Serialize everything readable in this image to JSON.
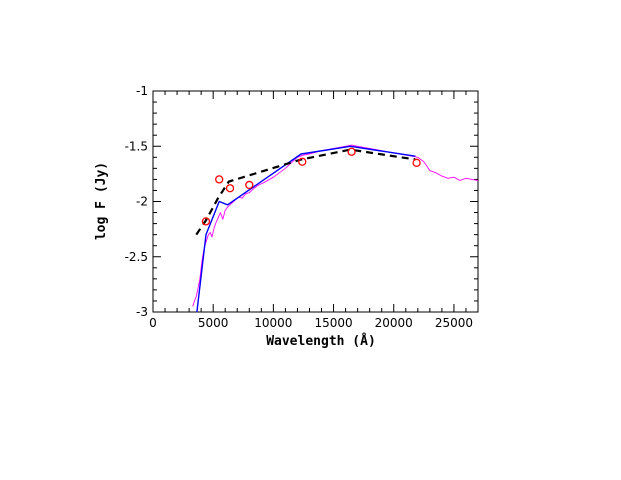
{
  "chart_data": {
    "type": "line",
    "xlabel": "Wavelength (Å)",
    "ylabel": "log F (Jy)",
    "xlim": [
      0,
      27000
    ],
    "ylim": [
      -3,
      -1
    ],
    "x_ticks": [
      0,
      5000,
      10000,
      15000,
      20000,
      25000
    ],
    "x_tick_labels": [
      "0",
      "5000",
      "10000",
      "15000",
      "20000",
      "25000"
    ],
    "y_ticks": [
      -3,
      -2.5,
      -2,
      -1.5,
      -1
    ],
    "y_tick_labels": [
      "-3",
      "-2.5",
      "-2",
      "-1.5",
      "-1"
    ],
    "grid": false,
    "legend": "none",
    "series": [
      {
        "style": "spectrum",
        "color": "#ff00ff",
        "x": [
          3300,
          3450,
          3600,
          3750,
          3900,
          4050,
          4150,
          4300,
          4450,
          4600,
          4750,
          4900,
          5050,
          5200,
          5400,
          5600,
          5800,
          6000,
          6200,
          6500,
          6800,
          7100,
          7400,
          7700,
          8000,
          8400,
          8800,
          9200,
          10000,
          11000,
          12000,
          12500,
          13000,
          14000,
          15000,
          16000,
          16500,
          17000,
          18000,
          19000,
          20000,
          21000,
          22000,
          22500,
          23000,
          23500,
          24000,
          24500,
          25000,
          25500,
          26000,
          26500,
          27000
        ],
        "y": [
          -2.95,
          -2.9,
          -2.86,
          -2.78,
          -2.7,
          -2.55,
          -2.48,
          -2.4,
          -2.35,
          -2.3,
          -2.28,
          -2.32,
          -2.25,
          -2.2,
          -2.15,
          -2.1,
          -2.16,
          -2.08,
          -2.05,
          -2.02,
          -1.99,
          -1.96,
          -1.97,
          -1.93,
          -1.92,
          -1.88,
          -1.85,
          -1.83,
          -1.78,
          -1.7,
          -1.6,
          -1.58,
          -1.57,
          -1.54,
          -1.52,
          -1.5,
          -1.49,
          -1.5,
          -1.52,
          -1.54,
          -1.56,
          -1.58,
          -1.6,
          -1.64,
          -1.72,
          -1.74,
          -1.77,
          -1.79,
          -1.78,
          -1.81,
          -1.79,
          -1.8,
          -1.81
        ]
      },
      {
        "style": "solid",
        "color": "#0000ff",
        "x": [
          3650,
          4400,
          5500,
          6200,
          12300,
          16400,
          21800
        ],
        "y": [
          -3.0,
          -2.3,
          -2.0,
          -2.03,
          -1.57,
          -1.5,
          -1.59
        ]
      },
      {
        "style": "dashed",
        "color": "#000000",
        "x": [
          3600,
          4400,
          5400,
          6300,
          12300,
          16400,
          21800
        ],
        "y": [
          -2.3,
          -2.17,
          -1.97,
          -1.82,
          -1.62,
          -1.53,
          -1.62
        ]
      },
      {
        "style": "markers",
        "marker": "open-circle",
        "color": "#ff0000",
        "x": [
          4400,
          5500,
          6400,
          8000,
          12400,
          16500,
          21900
        ],
        "y": [
          -2.18,
          -1.8,
          -1.88,
          -1.85,
          -1.64,
          -1.55,
          -1.65
        ]
      }
    ]
  }
}
